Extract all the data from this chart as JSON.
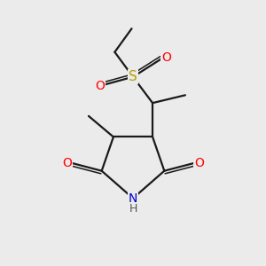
{
  "bg_color": "#ebebeb",
  "bond_color": "#1a1a1a",
  "bond_width": 1.6,
  "atom_colors": {
    "O": "#ff0000",
    "N": "#0000cd",
    "S": "#b8a000",
    "H": "#555555"
  },
  "font_size_atom": 10,
  "font_size_H": 9,
  "xlim": [
    0,
    10
  ],
  "ylim": [
    0,
    10
  ]
}
